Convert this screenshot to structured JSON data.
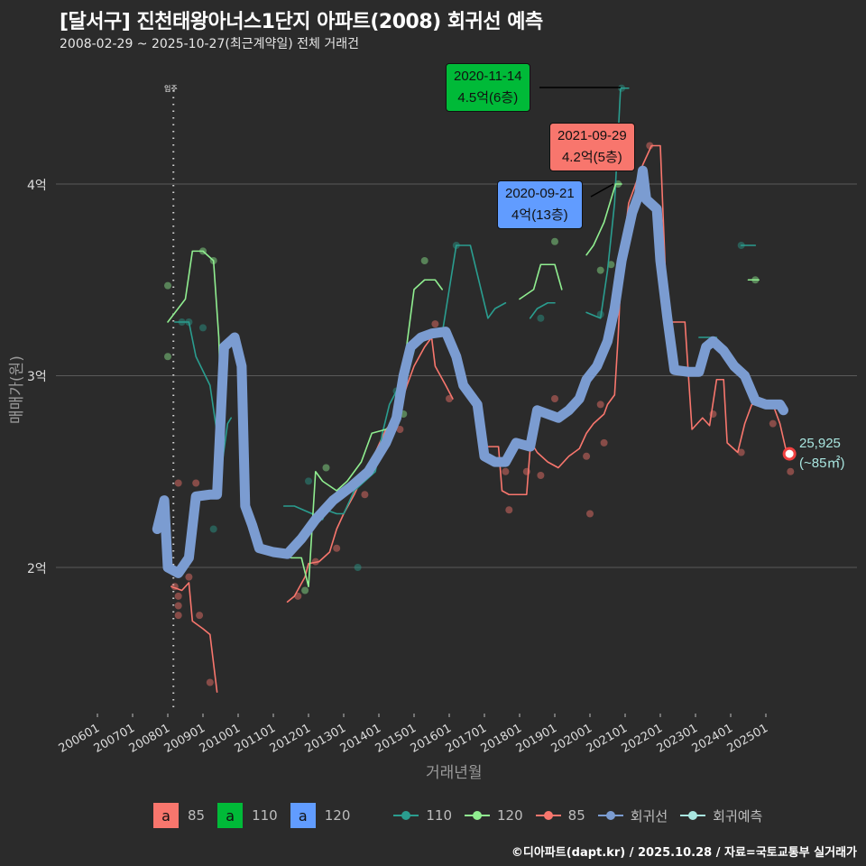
{
  "title": "[달서구] 진천태왕아너스1단지 아파트(2008) 회귀선 예측",
  "subtitle": "2008-02-29 ~ 2025-10-27(최근계약일) 전체 거래건",
  "caption": "©디아파트(dapt.kr) / 2025.10.28 / 자료=국토교통부 실거래가",
  "colors": {
    "background": "#2b2b2b",
    "gridline": "#5a5a5a",
    "s85": "#f8766d",
    "s110": "#2a9d8f",
    "s120": "#90ee90",
    "regression": "#7b9cd1",
    "forecast": "#a9e6e0",
    "box85": "#f8766d",
    "box110": "#00ba38",
    "box120": "#619cff"
  },
  "annotations": [
    {
      "date": "2020-11-14",
      "label": "4.5억(6층)",
      "series": "110"
    },
    {
      "date": "2021-09-29",
      "label": "4.2억(5층)",
      "series": "85"
    },
    {
      "date": "2020-09-21",
      "label": "4억(13층)",
      "series": "120"
    }
  ],
  "end_label": {
    "value": "25,925",
    "unit": "(~85㎡)"
  },
  "move_in_label": "입주",
  "legend": {
    "boxes": [
      {
        "glyph": "a",
        "label": "85"
      },
      {
        "glyph": "a",
        "label": "110"
      },
      {
        "glyph": "a",
        "label": "120"
      }
    ],
    "lines": [
      {
        "label": "110"
      },
      {
        "label": "120"
      },
      {
        "label": "85"
      },
      {
        "label": "회귀선"
      },
      {
        "label": "회귀예측"
      }
    ]
  },
  "chart_data": {
    "type": "line",
    "title": "[달서구] 진천태왕아너스1단지 아파트(2008) 회귀선 예측",
    "subtitle": "2008-02-29 ~ 2025-10-27(최근계약일) 전체 거래건",
    "xlabel": "거래년월",
    "ylabel": "매매가(원)",
    "x_ticks": [
      "200601",
      "200701",
      "200801",
      "200901",
      "201001",
      "201101",
      "201201",
      "201301",
      "201401",
      "201501",
      "201601",
      "201701",
      "201801",
      "201901",
      "202001",
      "202101",
      "202201",
      "202301",
      "202401",
      "202501"
    ],
    "y_ticks": [
      "2억",
      "3억",
      "4억"
    ],
    "y_tick_values": [
      2.0,
      3.0,
      4.0
    ],
    "ylim": [
      1.2,
      4.9
    ],
    "grid": true,
    "legend_position": "bottom",
    "vline": {
      "x": 2008.16,
      "label": "입주"
    },
    "series": [
      {
        "name": "85",
        "unit": "억",
        "points": [
          [
            2008.1,
            1.9
          ],
          [
            2008.4,
            1.88
          ],
          [
            2008.6,
            1.92
          ],
          [
            2008.7,
            1.72
          ],
          [
            2009.0,
            1.68
          ],
          [
            2009.2,
            1.65
          ],
          [
            2009.4,
            1.35
          ],
          [
            2011.4,
            1.82
          ],
          [
            2011.6,
            1.85
          ],
          [
            2011.9,
            1.95
          ],
          [
            2012.0,
            2.02
          ],
          [
            2012.3,
            2.03
          ],
          [
            2012.6,
            2.08
          ],
          [
            2012.8,
            2.2
          ],
          [
            2013.0,
            2.28
          ],
          [
            2013.3,
            2.38
          ],
          [
            2013.6,
            2.5
          ],
          [
            2013.9,
            2.6
          ],
          [
            2014.2,
            2.72
          ],
          [
            2014.5,
            2.78
          ],
          [
            2014.8,
            2.95
          ],
          [
            2015.0,
            3.05
          ],
          [
            2015.3,
            3.15
          ],
          [
            2015.5,
            3.2
          ],
          [
            2015.6,
            3.05
          ],
          [
            2015.9,
            2.95
          ],
          [
            2016.1,
            2.88
          ],
          [
            2016.9,
            2.63
          ],
          [
            2017.4,
            2.63
          ],
          [
            2017.5,
            2.4
          ],
          [
            2017.7,
            2.38
          ],
          [
            2018.0,
            2.38
          ],
          [
            2018.2,
            2.38
          ],
          [
            2018.3,
            2.62
          ],
          [
            2018.4,
            2.63
          ],
          [
            2018.5,
            2.6
          ],
          [
            2018.8,
            2.55
          ],
          [
            2019.1,
            2.52
          ],
          [
            2019.4,
            2.58
          ],
          [
            2019.7,
            2.62
          ],
          [
            2019.9,
            2.7
          ],
          [
            2020.1,
            2.75
          ],
          [
            2020.4,
            2.8
          ],
          [
            2020.5,
            2.85
          ],
          [
            2020.7,
            2.9
          ],
          [
            2020.8,
            3.2
          ],
          [
            2020.9,
            3.6
          ],
          [
            2021.1,
            3.9
          ],
          [
            2021.5,
            4.1
          ],
          [
            2021.75,
            4.2
          ],
          [
            2022.0,
            4.2
          ],
          [
            2022.2,
            3.28
          ],
          [
            2022.7,
            3.28
          ],
          [
            2022.9,
            2.72
          ],
          [
            2023.2,
            2.78
          ],
          [
            2023.4,
            2.74
          ],
          [
            2023.6,
            2.98
          ],
          [
            2023.8,
            2.98
          ],
          [
            2023.9,
            2.65
          ],
          [
            2024.2,
            2.6
          ],
          [
            2024.4,
            2.75
          ],
          [
            2024.6,
            2.85
          ],
          [
            2024.9,
            2.85
          ],
          [
            2025.2,
            2.85
          ],
          [
            2025.4,
            2.75
          ],
          [
            2025.6,
            2.59
          ]
        ]
      },
      {
        "name": "110",
        "unit": "억",
        "points": [
          [
            2008.2,
            3.28
          ],
          [
            2008.6,
            3.28
          ],
          [
            2008.8,
            3.1
          ],
          [
            2009.2,
            2.95
          ],
          [
            2009.4,
            2.7
          ],
          [
            2009.55,
            2.55
          ],
          [
            2009.7,
            2.75
          ],
          [
            2009.8,
            2.78
          ],
          [
            2011.3,
            2.32
          ],
          [
            2011.6,
            2.32
          ],
          [
            2012.1,
            2.28
          ],
          [
            2012.4,
            2.25
          ],
          [
            2012.5,
            2.3
          ],
          [
            2012.8,
            2.28
          ],
          [
            2013.0,
            2.28
          ],
          [
            2013.3,
            2.4
          ],
          [
            2013.6,
            2.45
          ],
          [
            2013.9,
            2.5
          ],
          [
            2014.1,
            2.7
          ],
          [
            2014.3,
            2.85
          ],
          [
            2014.5,
            2.92
          ],
          [
            2014.7,
            2.92
          ],
          [
            2015.1,
            3.2
          ],
          [
            2015.8,
            3.22
          ],
          [
            2016.2,
            3.68
          ],
          [
            2016.6,
            3.68
          ],
          [
            2017.1,
            3.3
          ],
          [
            2017.3,
            3.35
          ],
          [
            2017.6,
            3.38
          ],
          [
            2018.3,
            3.3
          ],
          [
            2018.5,
            3.35
          ],
          [
            2018.8,
            3.38
          ],
          [
            2019.0,
            3.38
          ],
          [
            2019.9,
            3.33
          ],
          [
            2020.3,
            3.3
          ],
          [
            2020.5,
            3.55
          ],
          [
            2020.7,
            3.9
          ],
          [
            2020.87,
            4.5
          ],
          [
            2021.1,
            4.5
          ],
          [
            2023.1,
            3.2
          ],
          [
            2023.6,
            3.2
          ],
          [
            2024.3,
            3.68
          ],
          [
            2024.7,
            3.68
          ]
        ]
      },
      {
        "name": "120",
        "unit": "억",
        "points": [
          [
            2008.0,
            3.28
          ],
          [
            2008.5,
            3.4
          ],
          [
            2008.7,
            3.65
          ],
          [
            2009.0,
            3.65
          ],
          [
            2009.3,
            3.6
          ],
          [
            2009.45,
            3.2
          ],
          [
            2009.55,
            2.55
          ],
          [
            2011.5,
            2.05
          ],
          [
            2011.8,
            2.05
          ],
          [
            2012.0,
            1.9
          ],
          [
            2012.2,
            2.5
          ],
          [
            2012.4,
            2.45
          ],
          [
            2012.8,
            2.4
          ],
          [
            2013.1,
            2.45
          ],
          [
            2013.5,
            2.55
          ],
          [
            2013.8,
            2.7
          ],
          [
            2014.2,
            2.72
          ],
          [
            2014.5,
            2.75
          ],
          [
            2015.0,
            3.45
          ],
          [
            2015.3,
            3.5
          ],
          [
            2015.6,
            3.5
          ],
          [
            2015.8,
            3.45
          ],
          [
            2018.0,
            3.4
          ],
          [
            2018.4,
            3.45
          ],
          [
            2018.6,
            3.58
          ],
          [
            2019.0,
            3.58
          ],
          [
            2019.2,
            3.45
          ],
          [
            2019.9,
            3.63
          ],
          [
            2020.1,
            3.68
          ],
          [
            2020.4,
            3.8
          ],
          [
            2020.73,
            4.0
          ],
          [
            2020.9,
            4.0
          ],
          [
            2024.5,
            3.5
          ],
          [
            2024.8,
            3.5
          ]
        ]
      },
      {
        "name": "회귀선",
        "unit": "억",
        "points": [
          [
            2007.7,
            2.2
          ],
          [
            2007.9,
            2.35
          ],
          [
            2008.0,
            2.0
          ],
          [
            2008.3,
            1.97
          ],
          [
            2008.6,
            2.05
          ],
          [
            2008.8,
            2.37
          ],
          [
            2009.2,
            2.38
          ],
          [
            2009.4,
            2.38
          ],
          [
            2009.6,
            3.15
          ],
          [
            2009.9,
            3.2
          ],
          [
            2010.1,
            3.05
          ],
          [
            2010.2,
            2.32
          ],
          [
            2010.4,
            2.22
          ],
          [
            2010.6,
            2.1
          ],
          [
            2011.0,
            2.08
          ],
          [
            2011.4,
            2.07
          ],
          [
            2011.8,
            2.15
          ],
          [
            2012.2,
            2.25
          ],
          [
            2012.7,
            2.35
          ],
          [
            2013.2,
            2.42
          ],
          [
            2013.7,
            2.5
          ],
          [
            2014.2,
            2.65
          ],
          [
            2014.5,
            2.78
          ],
          [
            2014.7,
            3.0
          ],
          [
            2014.9,
            3.15
          ],
          [
            2015.2,
            3.2
          ],
          [
            2015.5,
            3.22
          ],
          [
            2015.9,
            3.23
          ],
          [
            2016.2,
            3.1
          ],
          [
            2016.4,
            2.95
          ],
          [
            2016.6,
            2.9
          ],
          [
            2016.8,
            2.85
          ],
          [
            2017.0,
            2.58
          ],
          [
            2017.3,
            2.55
          ],
          [
            2017.6,
            2.55
          ],
          [
            2017.9,
            2.65
          ],
          [
            2018.3,
            2.63
          ],
          [
            2018.5,
            2.82
          ],
          [
            2018.8,
            2.8
          ],
          [
            2019.1,
            2.78
          ],
          [
            2019.4,
            2.82
          ],
          [
            2019.7,
            2.88
          ],
          [
            2019.9,
            2.98
          ],
          [
            2020.2,
            3.05
          ],
          [
            2020.5,
            3.18
          ],
          [
            2020.7,
            3.35
          ],
          [
            2020.9,
            3.6
          ],
          [
            2021.2,
            3.85
          ],
          [
            2021.4,
            3.95
          ],
          [
            2021.5,
            4.07
          ],
          [
            2021.6,
            3.92
          ],
          [
            2021.9,
            3.87
          ],
          [
            2022.0,
            3.6
          ],
          [
            2022.2,
            3.3
          ],
          [
            2022.4,
            3.03
          ],
          [
            2022.8,
            3.02
          ],
          [
            2023.1,
            3.02
          ],
          [
            2023.3,
            3.15
          ],
          [
            2023.5,
            3.18
          ],
          [
            2023.8,
            3.13
          ],
          [
            2024.1,
            3.05
          ],
          [
            2024.4,
            3.0
          ],
          [
            2024.7,
            2.87
          ],
          [
            2025.0,
            2.85
          ],
          [
            2025.4,
            2.85
          ],
          [
            2025.5,
            2.82
          ]
        ]
      },
      {
        "name": "회귀예측",
        "unit": "억",
        "points": [
          [
            2025.67,
            2.5925
          ]
        ]
      }
    ],
    "scatter_85": [
      [
        2008.2,
        1.9
      ],
      [
        2008.3,
        1.85
      ],
      [
        2008.3,
        1.8
      ],
      [
        2008.3,
        1.75
      ],
      [
        2008.6,
        1.95
      ],
      [
        2008.9,
        1.75
      ],
      [
        2009.2,
        1.4
      ],
      [
        2008.3,
        2.44
      ],
      [
        2008.8,
        2.44
      ],
      [
        2011.7,
        1.85
      ],
      [
        2012.2,
        2.03
      ],
      [
        2012.8,
        2.1
      ],
      [
        2013.6,
        2.38
      ],
      [
        2014.6,
        2.72
      ],
      [
        2015.6,
        3.27
      ],
      [
        2016.0,
        2.88
      ],
      [
        2017.6,
        2.5
      ],
      [
        2017.7,
        2.3
      ],
      [
        2018.2,
        2.5
      ],
      [
        2018.6,
        2.48
      ],
      [
        2019.0,
        2.88
      ],
      [
        2019.9,
        2.58
      ],
      [
        2020.0,
        2.28
      ],
      [
        2020.3,
        2.85
      ],
      [
        2020.4,
        2.65
      ],
      [
        2021.7,
        4.2
      ],
      [
        2023.5,
        2.8
      ],
      [
        2024.3,
        2.6
      ],
      [
        2025.2,
        2.75
      ],
      [
        2025.7,
        2.5
      ]
    ],
    "scatter_110": [
      [
        2008.4,
        3.28
      ],
      [
        2008.6,
        3.28
      ],
      [
        2009.0,
        3.25
      ],
      [
        2009.3,
        2.2
      ],
      [
        2012.0,
        2.45
      ],
      [
        2013.4,
        2.0
      ],
      [
        2014.5,
        2.92
      ],
      [
        2016.2,
        3.68
      ],
      [
        2018.6,
        3.3
      ],
      [
        2020.3,
        3.32
      ],
      [
        2020.9,
        4.5
      ],
      [
        2024.3,
        3.68
      ]
    ],
    "scatter_120": [
      [
        2008.0,
        3.47
      ],
      [
        2008.0,
        3.1
      ],
      [
        2009.0,
        3.65
      ],
      [
        2009.3,
        3.6
      ],
      [
        2011.9,
        1.88
      ],
      [
        2012.5,
        2.52
      ],
      [
        2013.7,
        2.5
      ],
      [
        2014.7,
        2.8
      ],
      [
        2015.3,
        3.6
      ],
      [
        2019.0,
        3.7
      ],
      [
        2020.3,
        3.55
      ],
      [
        2020.6,
        3.58
      ],
      [
        2020.8,
        4.0
      ],
      [
        2024.7,
        3.5
      ]
    ]
  }
}
